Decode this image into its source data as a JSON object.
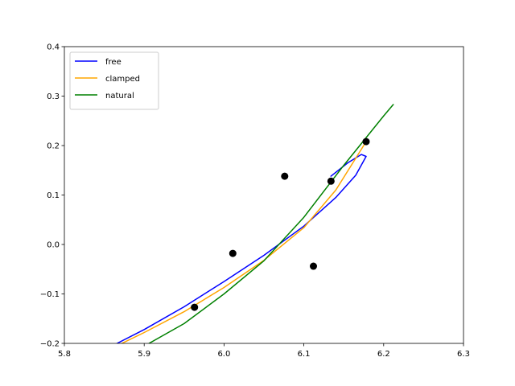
{
  "chart_data": {
    "type": "line",
    "title": "",
    "xlabel": "",
    "ylabel": "",
    "xlim": [
      5.8,
      6.3
    ],
    "ylim": [
      -0.2,
      0.4
    ],
    "x_ticks": [
      5.8,
      5.9,
      6.0,
      6.1,
      6.2,
      6.3
    ],
    "x_tick_labels": [
      "5.8",
      "5.9",
      "6.0",
      "6.1",
      "6.2",
      "6.3"
    ],
    "y_ticks": [
      -0.2,
      -0.1,
      0.0,
      0.1,
      0.2,
      0.3,
      0.4
    ],
    "y_tick_labels": [
      "−0.2",
      "−0.1",
      "0.0",
      "0.1",
      "0.2",
      "0.3",
      "0.4"
    ],
    "grid": false,
    "legend_position": "top-left",
    "points": {
      "x": [
        5.963,
        6.011,
        6.076,
        6.112,
        6.134,
        6.178
      ],
      "y": [
        -0.127,
        -0.018,
        0.138,
        -0.044,
        0.128,
        0.208
      ],
      "color": "#000000"
    },
    "series": [
      {
        "name": "free",
        "color": "#0000ff",
        "x": [
          5.866,
          5.9,
          5.95,
          6.0,
          6.05,
          6.1,
          6.14,
          6.165,
          6.178,
          6.172,
          6.155,
          6.134
        ],
        "y": [
          -0.2,
          -0.172,
          -0.126,
          -0.075,
          -0.022,
          0.037,
          0.095,
          0.14,
          0.178,
          0.182,
          0.165,
          0.138
        ]
      },
      {
        "name": "clamped",
        "color": "#ffa500",
        "x": [
          5.872,
          5.9,
          5.95,
          6.0,
          6.05,
          6.1,
          6.14,
          6.178
        ],
        "y": [
          -0.2,
          -0.178,
          -0.136,
          -0.087,
          -0.032,
          0.034,
          0.11,
          0.208
        ]
      },
      {
        "name": "natural",
        "color": "#008000",
        "x": [
          5.906,
          5.95,
          6.0,
          6.05,
          6.1,
          6.15,
          6.2,
          6.212
        ],
        "y": [
          -0.2,
          -0.16,
          -0.1,
          -0.033,
          0.055,
          0.16,
          0.26,
          0.283
        ]
      }
    ]
  }
}
